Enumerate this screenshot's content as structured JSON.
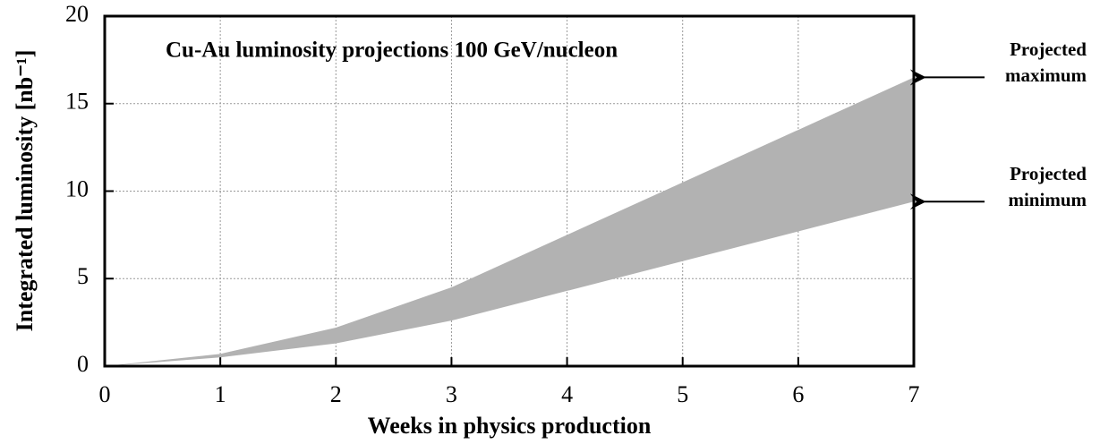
{
  "chart_data": {
    "type": "band",
    "title": "Cu-Au luminosity projections 100 GeV/nucleon",
    "x_label": "Weeks in physics production",
    "y_label": "Integrated luminosity [nb⁻¹]",
    "x": [
      0,
      1,
      2,
      3,
      4,
      5,
      6,
      7
    ],
    "upper": [
      0,
      0.7,
      2.2,
      4.5,
      7.5,
      10.5,
      13.5,
      16.5
    ],
    "lower": [
      0,
      0.5,
      1.3,
      2.6,
      4.3,
      6.0,
      7.7,
      9.4
    ],
    "color": "#b2b2b2",
    "xlim": [
      0,
      7
    ],
    "xticks": [
      0,
      1,
      2,
      3,
      4,
      5,
      6,
      7
    ],
    "ylim": [
      0,
      20
    ],
    "yticks": [
      0,
      5,
      10,
      15,
      20
    ],
    "grid": true,
    "upper_label": [
      "Projected",
      "maximum"
    ],
    "lower_label": [
      "Projected",
      "minimum"
    ]
  }
}
